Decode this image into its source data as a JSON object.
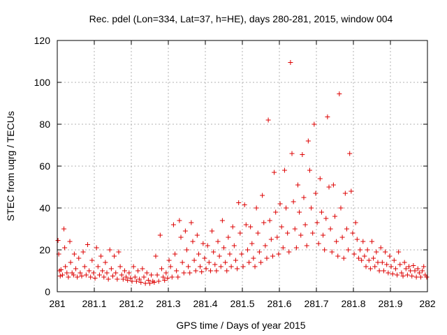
{
  "chart_data": {
    "type": "scatter",
    "title": "Rec. pdel (Lon=334, Lat=37, h=HE), days 280-281, 2015, window 004",
    "xlabel": "GPS time / Days of year 2015",
    "ylabel": "STEC from uqrg / TECUs",
    "xlim": [
      281,
      282
    ],
    "ylim": [
      0,
      120
    ],
    "xticks": [
      "281",
      "281.1",
      "281.2",
      "281.3",
      "281.4",
      "281.5",
      "281.6",
      "281.7",
      "281.8",
      "281.9",
      "282"
    ],
    "yticks": [
      "0",
      "20",
      "40",
      "60",
      "80",
      "100",
      "120"
    ],
    "grid": true,
    "marker": "plus",
    "color": "#dd0000",
    "series": [
      {
        "name": "STEC",
        "points": [
          [
            281.002,
            24.5
          ],
          [
            281.004,
            18
          ],
          [
            281.006,
            10
          ],
          [
            281.008,
            7.5
          ],
          [
            281.01,
            10.5
          ],
          [
            281.014,
            8
          ],
          [
            281.018,
            30
          ],
          [
            281.02,
            21
          ],
          [
            281.022,
            12
          ],
          [
            281.026,
            9
          ],
          [
            281.03,
            7
          ],
          [
            281.034,
            24
          ],
          [
            281.036,
            14
          ],
          [
            281.04,
            9
          ],
          [
            281.044,
            8
          ],
          [
            281.046,
            18
          ],
          [
            281.05,
            11
          ],
          [
            281.054,
            7
          ],
          [
            281.058,
            16
          ],
          [
            281.062,
            9
          ],
          [
            281.066,
            7.5
          ],
          [
            281.07,
            19
          ],
          [
            281.074,
            12
          ],
          [
            281.078,
            8
          ],
          [
            281.082,
            22.5
          ],
          [
            281.086,
            10
          ],
          [
            281.09,
            7
          ],
          [
            281.094,
            15
          ],
          [
            281.098,
            9
          ],
          [
            281.102,
            6.5
          ],
          [
            281.106,
            21
          ],
          [
            281.11,
            12
          ],
          [
            281.114,
            8
          ],
          [
            281.118,
            17
          ],
          [
            281.122,
            10
          ],
          [
            281.126,
            7
          ],
          [
            281.13,
            14
          ],
          [
            281.134,
            9
          ],
          [
            281.138,
            6
          ],
          [
            281.142,
            20
          ],
          [
            281.146,
            11
          ],
          [
            281.15,
            7.5
          ],
          [
            281.154,
            17
          ],
          [
            281.158,
            9
          ],
          [
            281.162,
            6
          ],
          [
            281.166,
            19
          ],
          [
            281.17,
            12
          ],
          [
            281.174,
            8
          ],
          [
            281.178,
            6
          ],
          [
            281.182,
            10
          ],
          [
            281.186,
            7
          ],
          [
            281.19,
            5.5
          ],
          [
            281.194,
            9
          ],
          [
            281.198,
            6.5
          ],
          [
            281.202,
            5
          ],
          [
            281.206,
            12
          ],
          [
            281.21,
            7
          ],
          [
            281.214,
            5
          ],
          [
            281.218,
            10
          ],
          [
            281.222,
            6
          ],
          [
            281.226,
            4.5
          ],
          [
            281.23,
            11
          ],
          [
            281.234,
            7
          ],
          [
            281.238,
            4
          ],
          [
            281.242,
            9
          ],
          [
            281.246,
            5.5
          ],
          [
            281.25,
            4
          ],
          [
            281.254,
            8
          ],
          [
            281.258,
            5
          ],
          [
            281.262,
            4.5
          ],
          [
            281.266,
            17
          ],
          [
            281.27,
            8
          ],
          [
            281.274,
            5
          ],
          [
            281.278,
            27
          ],
          [
            281.282,
            11
          ],
          [
            281.286,
            7
          ],
          [
            281.29,
            5.5
          ],
          [
            281.294,
            9
          ],
          [
            281.298,
            6.5
          ],
          [
            281.302,
            15
          ],
          [
            281.306,
            12
          ],
          [
            281.31,
            7
          ],
          [
            281.314,
            32
          ],
          [
            281.318,
            18
          ],
          [
            281.322,
            10
          ],
          [
            281.326,
            7
          ],
          [
            281.33,
            34
          ],
          [
            281.334,
            26
          ],
          [
            281.338,
            14
          ],
          [
            281.342,
            9
          ],
          [
            281.346,
            29
          ],
          [
            281.35,
            20
          ],
          [
            281.354,
            12
          ],
          [
            281.358,
            9
          ],
          [
            281.362,
            33
          ],
          [
            281.366,
            24
          ],
          [
            281.37,
            15
          ],
          [
            281.374,
            10
          ],
          [
            281.378,
            27
          ],
          [
            281.382,
            18
          ],
          [
            281.386,
            12
          ],
          [
            281.39,
            9.5
          ],
          [
            281.394,
            23
          ],
          [
            281.398,
            16
          ],
          [
            281.402,
            11
          ],
          [
            281.406,
            22
          ],
          [
            281.41,
            14
          ],
          [
            281.414,
            10
          ],
          [
            281.418,
            29
          ],
          [
            281.422,
            19
          ],
          [
            281.426,
            13
          ],
          [
            281.43,
            10
          ],
          [
            281.434,
            24
          ],
          [
            281.438,
            17
          ],
          [
            281.442,
            12
          ],
          [
            281.446,
            34
          ],
          [
            281.45,
            21
          ],
          [
            281.454,
            14
          ],
          [
            281.458,
            10
          ],
          [
            281.462,
            26
          ],
          [
            281.466,
            18
          ],
          [
            281.47,
            12
          ],
          [
            281.474,
            31
          ],
          [
            281.478,
            22
          ],
          [
            281.482,
            15
          ],
          [
            281.486,
            11
          ],
          [
            281.49,
            42.5
          ],
          [
            281.494,
            28
          ],
          [
            281.498,
            18
          ],
          [
            281.502,
            12
          ],
          [
            281.506,
            41.5
          ],
          [
            281.51,
            32
          ],
          [
            281.514,
            20
          ],
          [
            281.518,
            14
          ],
          [
            281.522,
            31
          ],
          [
            281.526,
            23
          ],
          [
            281.53,
            16
          ],
          [
            281.534,
            12
          ],
          [
            281.538,
            40
          ],
          [
            281.542,
            28
          ],
          [
            281.546,
            19
          ],
          [
            281.55,
            14
          ],
          [
            281.554,
            46
          ],
          [
            281.558,
            33
          ],
          [
            281.562,
            22
          ],
          [
            281.566,
            16
          ],
          [
            281.57,
            82
          ],
          [
            281.574,
            34
          ],
          [
            281.578,
            25
          ],
          [
            281.582,
            17
          ],
          [
            281.586,
            57
          ],
          [
            281.59,
            38
          ],
          [
            281.594,
            26
          ],
          [
            281.598,
            18
          ],
          [
            281.602,
            42
          ],
          [
            281.606,
            31
          ],
          [
            281.61,
            21
          ],
          [
            281.614,
            58
          ],
          [
            281.618,
            40
          ],
          [
            281.622,
            28
          ],
          [
            281.626,
            19
          ],
          [
            281.63,
            109.5
          ],
          [
            281.634,
            66
          ],
          [
            281.638,
            43
          ],
          [
            281.642,
            30
          ],
          [
            281.646,
            21
          ],
          [
            281.65,
            51
          ],
          [
            281.654,
            38
          ],
          [
            281.658,
            27
          ],
          [
            281.662,
            65.5
          ],
          [
            281.666,
            45
          ],
          [
            281.67,
            32
          ],
          [
            281.674,
            22
          ],
          [
            281.678,
            72
          ],
          [
            281.682,
            58
          ],
          [
            281.686,
            40
          ],
          [
            281.69,
            28
          ],
          [
            281.694,
            80
          ],
          [
            281.698,
            47
          ],
          [
            281.702,
            33
          ],
          [
            281.706,
            23
          ],
          [
            281.71,
            54
          ],
          [
            281.714,
            38
          ],
          [
            281.718,
            27
          ],
          [
            281.722,
            20
          ],
          [
            281.726,
            35
          ],
          [
            281.73,
            83.5
          ],
          [
            281.734,
            50
          ],
          [
            281.738,
            30
          ],
          [
            281.742,
            19
          ],
          [
            281.746,
            51
          ],
          [
            281.75,
            36
          ],
          [
            281.754,
            24
          ],
          [
            281.758,
            17
          ],
          [
            281.762,
            94.5
          ],
          [
            281.766,
            40
          ],
          [
            281.77,
            26
          ],
          [
            281.774,
            16
          ],
          [
            281.778,
            47
          ],
          [
            281.782,
            30
          ],
          [
            281.786,
            20
          ],
          [
            281.79,
            66
          ],
          [
            281.794,
            48
          ],
          [
            281.798,
            28
          ],
          [
            281.802,
            18
          ],
          [
            281.806,
            33
          ],
          [
            281.81,
            25
          ],
          [
            281.814,
            16
          ],
          [
            281.818,
            20
          ],
          [
            281.822,
            15
          ],
          [
            281.826,
            24
          ],
          [
            281.83,
            17
          ],
          [
            281.834,
            12
          ],
          [
            281.838,
            20
          ],
          [
            281.842,
            15
          ],
          [
            281.846,
            11
          ],
          [
            281.85,
            24
          ],
          [
            281.854,
            16
          ],
          [
            281.858,
            12
          ],
          [
            281.862,
            19
          ],
          [
            281.866,
            14
          ],
          [
            281.87,
            10
          ],
          [
            281.874,
            21
          ],
          [
            281.878,
            14
          ],
          [
            281.882,
            10
          ],
          [
            281.886,
            19
          ],
          [
            281.89,
            13
          ],
          [
            281.894,
            9
          ],
          [
            281.898,
            17
          ],
          [
            281.902,
            12
          ],
          [
            281.906,
            8.5
          ],
          [
            281.91,
            15
          ],
          [
            281.914,
            11
          ],
          [
            281.918,
            8
          ],
          [
            281.922,
            19
          ],
          [
            281.926,
            13
          ],
          [
            281.93,
            9
          ],
          [
            281.934,
            7.5
          ],
          [
            281.938,
            14
          ],
          [
            281.942,
            11
          ],
          [
            281.946,
            8
          ],
          [
            281.95,
            12
          ],
          [
            281.954,
            10
          ],
          [
            281.958,
            7.5
          ],
          [
            281.962,
            12.5
          ],
          [
            281.966,
            10
          ],
          [
            281.97,
            7
          ],
          [
            281.974,
            11
          ],
          [
            281.978,
            9
          ],
          [
            281.982,
            7
          ],
          [
            281.986,
            10
          ],
          [
            281.99,
            12
          ],
          [
            281.994,
            8
          ],
          [
            281.998,
            7
          ]
        ]
      }
    ]
  }
}
